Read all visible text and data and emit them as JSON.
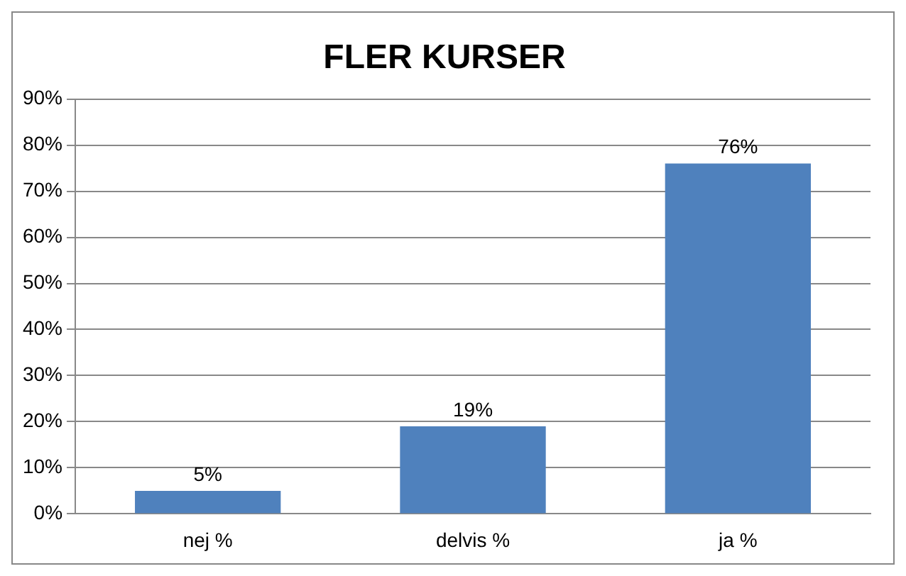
{
  "chart_data": {
    "type": "bar",
    "title": "FLER KURSER",
    "categories": [
      "nej %",
      "delvis %",
      "ja %"
    ],
    "values": [
      5,
      19,
      76
    ],
    "value_labels": [
      "5%",
      "19%",
      "76%"
    ],
    "color": "#4f81bd",
    "ylim": [
      0,
      90
    ],
    "yticks": [
      {
        "value": 0,
        "label": "0%"
      },
      {
        "value": 10,
        "label": "10%"
      },
      {
        "value": 20,
        "label": "20%"
      },
      {
        "value": 30,
        "label": "30%"
      },
      {
        "value": 40,
        "label": "40%"
      },
      {
        "value": 50,
        "label": "50%"
      },
      {
        "value": 60,
        "label": "60%"
      },
      {
        "value": 70,
        "label": "70%"
      },
      {
        "value": 80,
        "label": "80%"
      },
      {
        "value": 90,
        "label": "90%"
      }
    ],
    "grid": "y"
  }
}
